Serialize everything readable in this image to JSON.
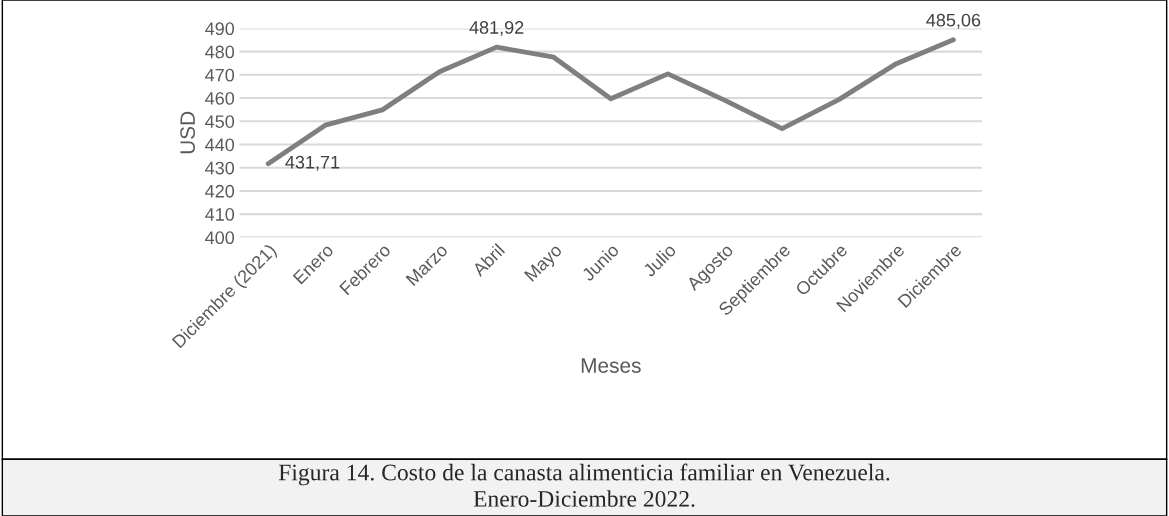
{
  "chart_data": {
    "type": "line",
    "xlabel": "Meses",
    "ylabel": "USD",
    "categories": [
      "Diciembre (2021)",
      "Enero",
      "Febrero",
      "Marzo",
      "Abril",
      "Mayo",
      "Junio",
      "Julio",
      "Agosto",
      "Septiembre",
      "Octubre",
      "Noviembre",
      "Diciembre"
    ],
    "series": [
      {
        "color": "#7f7f7f",
        "values": [
          431.71,
          448.3,
          454.9,
          471.3,
          481.92,
          477.6,
          459.7,
          470.4,
          459.0,
          446.8,
          459.4,
          474.8,
          485.06
        ],
        "value_labels": [
          "431,71",
          null,
          null,
          null,
          "481,92",
          null,
          null,
          null,
          null,
          null,
          null,
          null,
          "485,06"
        ]
      }
    ],
    "ylim": [
      400,
      490
    ],
    "yticks": [
      400,
      410,
      420,
      430,
      440,
      450,
      460,
      470,
      480,
      490
    ],
    "grid": "y",
    "legend": false,
    "marker": "none",
    "line_style": "solid",
    "annotations": [
      "Figura 14. Costo de la canasta alimenticia familiar en Venezuela.\nEnero-Diciembre 2022."
    ]
  }
}
